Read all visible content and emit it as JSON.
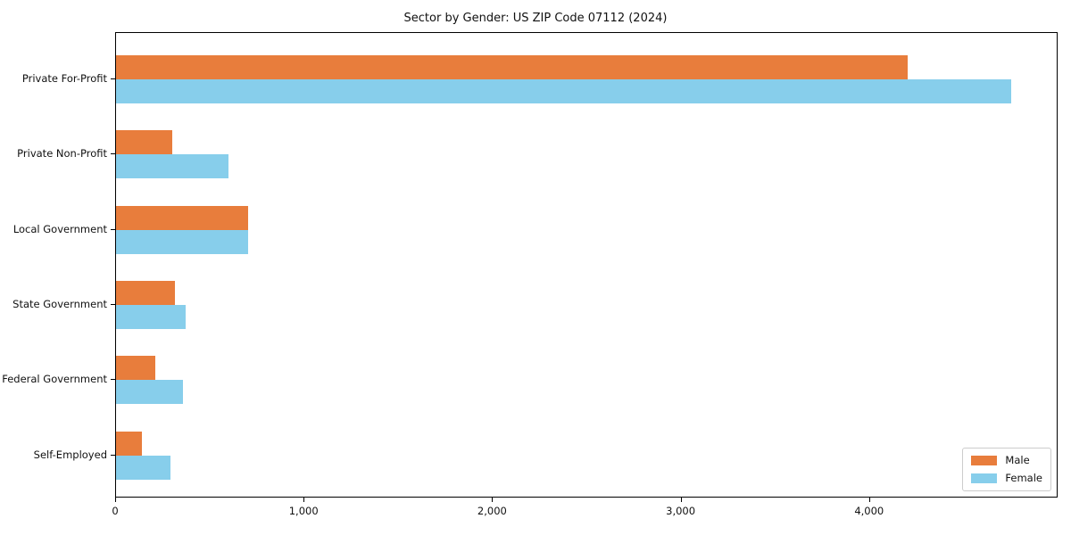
{
  "chart_data": {
    "type": "bar",
    "orientation": "horizontal",
    "title": "Sector by Gender: US ZIP Code 07112 (2024)",
    "categories": [
      "Private For-Profit",
      "Private Non-Profit",
      "Local Government",
      "State Government",
      "Federal Government",
      "Self-Employed"
    ],
    "series": [
      {
        "name": "Male",
        "color": "#e87d3c",
        "values": [
          4200,
          300,
          700,
          310,
          210,
          135
        ]
      },
      {
        "name": "Female",
        "color": "#87ceeb",
        "values": [
          4750,
          595,
          700,
          370,
          355,
          290
        ]
      }
    ],
    "xlabel": "",
    "ylabel": "",
    "xlim": [
      0,
      5000
    ],
    "x_ticks": [
      0,
      1000,
      2000,
      3000,
      4000
    ],
    "x_tick_labels": [
      "0",
      "1,000",
      "2,000",
      "3,000",
      "4,000"
    ],
    "grid": false,
    "legend_position": "lower right"
  }
}
